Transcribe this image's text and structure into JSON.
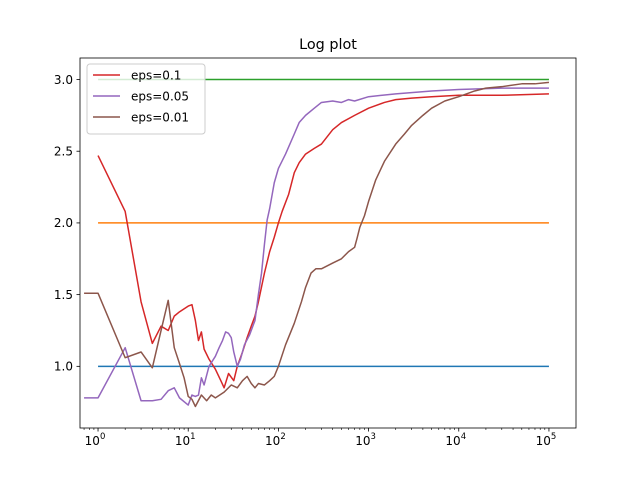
{
  "chart_data": {
    "type": "line",
    "title": "Log plot",
    "xscale": "log",
    "xlim_decades": [
      -0.2,
      5.3
    ],
    "ylim": [
      0.57,
      3.15
    ],
    "x_tick_labels": [
      {
        "value": 1,
        "base": "10",
        "exp": "0"
      },
      {
        "value": 10,
        "base": "10",
        "exp": "1"
      },
      {
        "value": 100,
        "base": "10",
        "exp": "2"
      },
      {
        "value": 1000,
        "base": "10",
        "exp": "3"
      },
      {
        "value": 10000,
        "base": "10",
        "exp": "4"
      },
      {
        "value": 100000,
        "base": "10",
        "exp": "5"
      }
    ],
    "y_ticks": [
      1.0,
      1.5,
      2.0,
      2.5,
      3.0
    ],
    "y_tick_labels": [
      "1.0",
      "1.5",
      "2.0",
      "2.5",
      "3.0"
    ],
    "legend": {
      "location": "upper-left",
      "entries": [
        {
          "label": "eps=0.1",
          "color": "#d62728"
        },
        {
          "label": "eps=0.05",
          "color": "#9467bd"
        },
        {
          "label": "eps=0.01",
          "color": "#8c564b"
        }
      ]
    },
    "series": [
      {
        "name": "level 1.0",
        "color": "#1f77b4",
        "points": [
          [
            1,
            1.0
          ],
          [
            100000,
            1.0
          ]
        ]
      },
      {
        "name": "level 2.0",
        "color": "#ff7f0e",
        "points": [
          [
            1,
            2.0
          ],
          [
            100000,
            2.0
          ]
        ]
      },
      {
        "name": "level 3.0",
        "color": "#2ca02c",
        "points": [
          [
            1,
            3.0
          ],
          [
            100000,
            3.0
          ]
        ]
      },
      {
        "name": "eps=0.1",
        "color": "#d62728",
        "points": [
          [
            1,
            2.47
          ],
          [
            2,
            2.08
          ],
          [
            3,
            1.45
          ],
          [
            4,
            1.16
          ],
          [
            5,
            1.28
          ],
          [
            6,
            1.25
          ],
          [
            7,
            1.35
          ],
          [
            8,
            1.38
          ],
          [
            10,
            1.42
          ],
          [
            11,
            1.43
          ],
          [
            12,
            1.32
          ],
          [
            13,
            1.18
          ],
          [
            14,
            1.24
          ],
          [
            15,
            1.12
          ],
          [
            17,
            1.05
          ],
          [
            20,
            0.98
          ],
          [
            23,
            0.9
          ],
          [
            25,
            0.85
          ],
          [
            28,
            0.95
          ],
          [
            32,
            0.9
          ],
          [
            35,
            1.0
          ],
          [
            40,
            1.1
          ],
          [
            45,
            1.2
          ],
          [
            50,
            1.28
          ],
          [
            55,
            1.35
          ],
          [
            60,
            1.45
          ],
          [
            70,
            1.65
          ],
          [
            80,
            1.8
          ],
          [
            90,
            1.9
          ],
          [
            100,
            2.0
          ],
          [
            110,
            2.08
          ],
          [
            130,
            2.2
          ],
          [
            150,
            2.35
          ],
          [
            170,
            2.42
          ],
          [
            200,
            2.48
          ],
          [
            250,
            2.52
          ],
          [
            300,
            2.55
          ],
          [
            400,
            2.65
          ],
          [
            500,
            2.7
          ],
          [
            700,
            2.75
          ],
          [
            1000,
            2.8
          ],
          [
            1500,
            2.84
          ],
          [
            2000,
            2.86
          ],
          [
            3000,
            2.87
          ],
          [
            5000,
            2.88
          ],
          [
            10000,
            2.89
          ],
          [
            30000,
            2.89
          ],
          [
            100000,
            2.9
          ]
        ]
      },
      {
        "name": "eps=0.05",
        "color": "#9467bd",
        "points": [
          [
            0.7,
            0.78
          ],
          [
            1,
            0.78
          ],
          [
            2,
            1.13
          ],
          [
            3,
            0.76
          ],
          [
            4,
            0.76
          ],
          [
            5,
            0.77
          ],
          [
            6,
            0.83
          ],
          [
            7,
            0.85
          ],
          [
            8,
            0.78
          ],
          [
            10,
            0.73
          ],
          [
            11,
            0.8
          ],
          [
            12,
            0.79
          ],
          [
            13,
            0.8
          ],
          [
            14,
            0.92
          ],
          [
            15,
            0.87
          ],
          [
            17,
            1.0
          ],
          [
            20,
            1.07
          ],
          [
            22,
            1.13
          ],
          [
            24,
            1.18
          ],
          [
            26,
            1.24
          ],
          [
            28,
            1.23
          ],
          [
            30,
            1.2
          ],
          [
            32,
            1.1
          ],
          [
            35,
            1.0
          ],
          [
            38,
            1.05
          ],
          [
            42,
            1.15
          ],
          [
            48,
            1.22
          ],
          [
            55,
            1.32
          ],
          [
            60,
            1.5
          ],
          [
            65,
            1.65
          ],
          [
            70,
            1.85
          ],
          [
            75,
            2.02
          ],
          [
            80,
            2.1
          ],
          [
            90,
            2.28
          ],
          [
            100,
            2.38
          ],
          [
            120,
            2.48
          ],
          [
            150,
            2.62
          ],
          [
            170,
            2.7
          ],
          [
            200,
            2.75
          ],
          [
            250,
            2.8
          ],
          [
            300,
            2.84
          ],
          [
            400,
            2.85
          ],
          [
            500,
            2.84
          ],
          [
            600,
            2.86
          ],
          [
            700,
            2.85
          ],
          [
            1000,
            2.88
          ],
          [
            2000,
            2.9
          ],
          [
            5000,
            2.92
          ],
          [
            10000,
            2.93
          ],
          [
            30000,
            2.94
          ],
          [
            100000,
            2.94
          ]
        ]
      },
      {
        "name": "eps=0.01",
        "color": "#8c564b",
        "points": [
          [
            0.7,
            1.51
          ],
          [
            1,
            1.51
          ],
          [
            2,
            1.06
          ],
          [
            3,
            1.1
          ],
          [
            4,
            0.99
          ],
          [
            5,
            1.25
          ],
          [
            6,
            1.46
          ],
          [
            7,
            1.13
          ],
          [
            8,
            1.02
          ],
          [
            9,
            0.92
          ],
          [
            10,
            0.79
          ],
          [
            11,
            0.77
          ],
          [
            12,
            0.72
          ],
          [
            14,
            0.8
          ],
          [
            16,
            0.76
          ],
          [
            18,
            0.8
          ],
          [
            20,
            0.78
          ],
          [
            25,
            0.82
          ],
          [
            30,
            0.87
          ],
          [
            35,
            0.85
          ],
          [
            40,
            0.9
          ],
          [
            45,
            0.93
          ],
          [
            50,
            0.88
          ],
          [
            55,
            0.85
          ],
          [
            60,
            0.88
          ],
          [
            70,
            0.87
          ],
          [
            80,
            0.9
          ],
          [
            90,
            0.93
          ],
          [
            100,
            1.0
          ],
          [
            120,
            1.15
          ],
          [
            150,
            1.3
          ],
          [
            180,
            1.45
          ],
          [
            200,
            1.55
          ],
          [
            230,
            1.65
          ],
          [
            260,
            1.68
          ],
          [
            300,
            1.68
          ],
          [
            400,
            1.72
          ],
          [
            500,
            1.75
          ],
          [
            600,
            1.8
          ],
          [
            700,
            1.83
          ],
          [
            750,
            1.9
          ],
          [
            800,
            1.97
          ],
          [
            900,
            2.05
          ],
          [
            1000,
            2.15
          ],
          [
            1200,
            2.3
          ],
          [
            1500,
            2.43
          ],
          [
            2000,
            2.55
          ],
          [
            2500,
            2.62
          ],
          [
            3000,
            2.68
          ],
          [
            4000,
            2.75
          ],
          [
            5000,
            2.8
          ],
          [
            7000,
            2.85
          ],
          [
            10000,
            2.88
          ],
          [
            15000,
            2.92
          ],
          [
            20000,
            2.94
          ],
          [
            30000,
            2.95
          ],
          [
            50000,
            2.97
          ],
          [
            70000,
            2.97
          ],
          [
            100000,
            2.98
          ]
        ]
      }
    ]
  }
}
